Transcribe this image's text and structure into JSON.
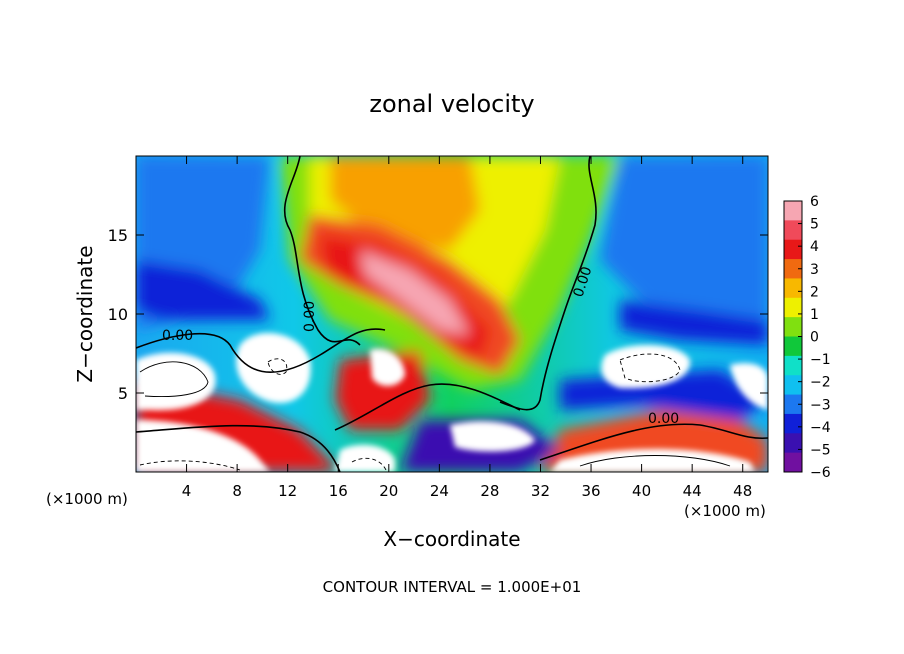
{
  "chart_data": {
    "type": "heatmap",
    "title": "zonal velocity",
    "xlabel": "X−coordinate",
    "ylabel": "Z−coordinate",
    "x_unit_left": "(×1000 m)",
    "x_unit_right": "(×1000 m)",
    "footer": "CONTOUR INTERVAL = 1.000E+01",
    "xlim": [
      0,
      50
    ],
    "ylim": [
      0,
      20
    ],
    "x_ticks": [
      "4",
      "8",
      "12",
      "16",
      "20",
      "24",
      "28",
      "32",
      "36",
      "40",
      "44",
      "48"
    ],
    "x_tick_values": [
      4,
      8,
      12,
      16,
      20,
      24,
      28,
      32,
      36,
      40,
      44,
      48
    ],
    "y_ticks": [
      "5",
      "10",
      "15"
    ],
    "y_tick_values": [
      5,
      10,
      15
    ],
    "colorbar_labels": [
      "6",
      "5",
      "4",
      "3",
      "2",
      "1",
      "0",
      "−1",
      "−2",
      "−3",
      "−4",
      "−5",
      "−6"
    ],
    "colorbar_values": [
      6,
      5,
      4,
      3,
      2,
      1,
      0,
      -1,
      -2,
      -3,
      -4,
      -5,
      -6
    ],
    "colorbar_colors": [
      "#f6a6b2",
      "#f04a5a",
      "#e81818",
      "#f06a10",
      "#f8b800",
      "#eef000",
      "#80e010",
      "#10c83a",
      "#10e0c8",
      "#10c0f0",
      "#1c78f0",
      "#1020d8",
      "#3a10b0",
      "#7010a0"
    ],
    "contour_labels": [
      "0.00",
      "0.00",
      "0.00",
      "0.00"
    ],
    "regions_out_of_range": "white",
    "field_features": [
      {
        "kind": "positive_max",
        "x": 20,
        "z": 12,
        "value": 6
      },
      {
        "kind": "positive",
        "x": 25,
        "z": 17,
        "value": 3
      },
      {
        "kind": "positive",
        "x": 19,
        "z": 7,
        "value": 5
      },
      {
        "kind": "negative",
        "x": 3,
        "z": 12,
        "value": -4
      },
      {
        "kind": "negative",
        "x": 46,
        "z": 12,
        "value": -3
      },
      {
        "kind": "negative",
        "x": 24,
        "z": 2,
        "value": -5
      },
      {
        "kind": "negative",
        "x": 43,
        "z": 6,
        "value": -5
      }
    ]
  }
}
